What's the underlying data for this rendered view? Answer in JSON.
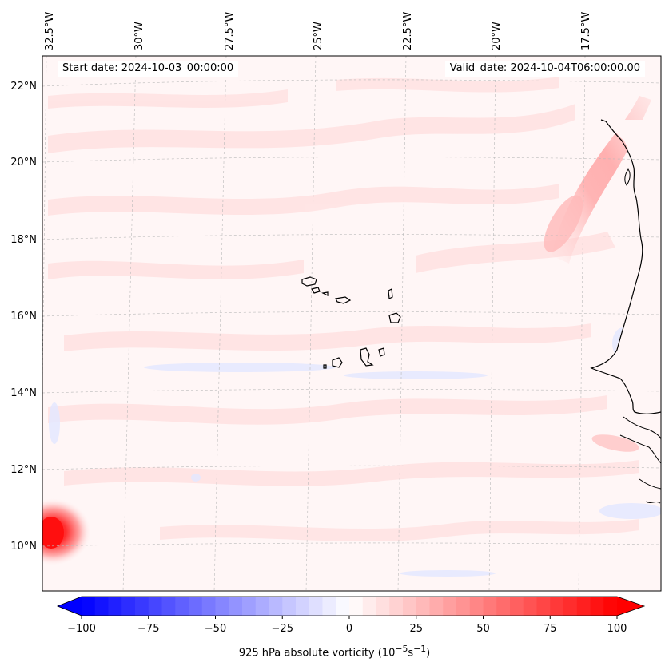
{
  "map": {
    "start_date": "Start date: 2024-10-03_00:00:00",
    "valid_date": "Valid_date: 2024-10-04T06:00:00.00",
    "lon_labels": [
      "32.5°W",
      "30°W",
      "27.5°W",
      "25°W",
      "22.5°W",
      "20°W",
      "17.5°W"
    ],
    "lat_labels": [
      "22°N",
      "20°N",
      "18°N",
      "16°N",
      "14°N",
      "12°N",
      "10°N"
    ],
    "field": "925 hPa absolute vorticity",
    "region": "Cabo Verde islands and West African coast"
  },
  "colorbar": {
    "label_prefix": "925 hPa absolute vorticity (10",
    "label_exp1": "−5",
    "label_mid": "s",
    "label_exp2": "−1",
    "label_suffix": ")",
    "ticks": [
      "−100",
      "−75",
      "−50",
      "−25",
      "0",
      "25",
      "50",
      "75",
      "100"
    ],
    "min": -100,
    "max": 100,
    "neg_color": "#0000ff",
    "pos_color": "#ff0000",
    "mid_color": "#ffffff"
  }
}
